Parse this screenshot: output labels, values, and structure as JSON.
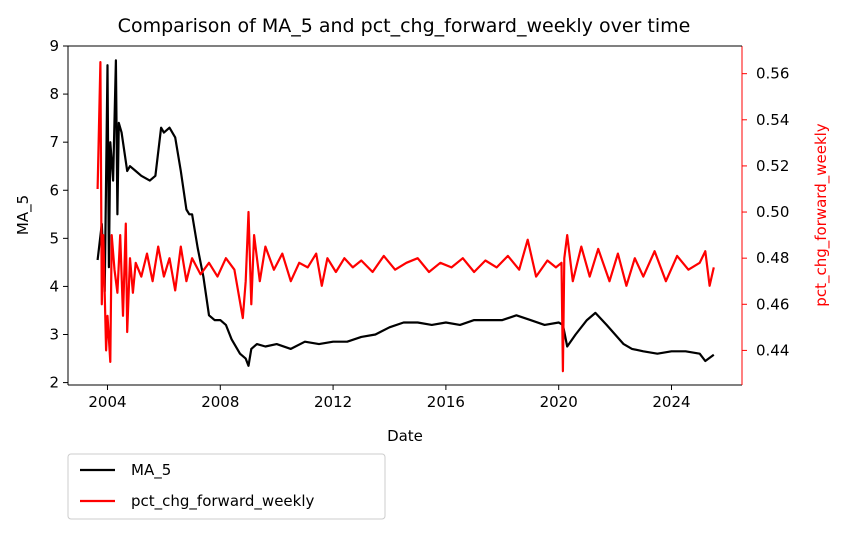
{
  "chart_data": {
    "type": "line",
    "title": "Comparison of MA_5 and pct_chg_forward_weekly over time",
    "xlabel": "Date",
    "ylabel_left": "MA_5",
    "ylabel_right": "pct_chg_forward_weekly",
    "xlim": [
      2002.6,
      2026.5
    ],
    "ylim_left": [
      1.95,
      9.0
    ],
    "ylim_right": [
      0.425,
      0.572
    ],
    "x_ticks": [
      2004,
      2008,
      2012,
      2016,
      2020,
      2024
    ],
    "x_tick_labels": [
      "2004",
      "2008",
      "2012",
      "2016",
      "2020",
      "2024"
    ],
    "y_left_ticks": [
      2,
      3,
      4,
      5,
      6,
      7,
      8,
      9
    ],
    "y_left_tick_labels": [
      "2",
      "3",
      "4",
      "5",
      "6",
      "7",
      "8",
      "9"
    ],
    "y_right_ticks": [
      0.44,
      0.46,
      0.48,
      0.5,
      0.52,
      0.54,
      0.56
    ],
    "y_right_tick_labels": [
      "0.44",
      "0.46",
      "0.48",
      "0.50",
      "0.52",
      "0.54",
      "0.56"
    ],
    "grid": false,
    "legend_placement": "below-left",
    "right_axis_color": "#ff0000",
    "series": [
      {
        "name": "MA_5",
        "axis": "left",
        "color": "#000000",
        "x": [
          2003.65,
          2003.8,
          2003.9,
          2004.0,
          2004.05,
          2004.1,
          2004.2,
          2004.3,
          2004.35,
          2004.4,
          2004.5,
          2004.6,
          2004.7,
          2004.8,
          2005.0,
          2005.2,
          2005.5,
          2005.7,
          2005.9,
          2006.0,
          2006.2,
          2006.4,
          2006.6,
          2006.8,
          2006.9,
          2007.0,
          2007.2,
          2007.4,
          2007.6,
          2007.8,
          2008.0,
          2008.2,
          2008.4,
          2008.7,
          2008.9,
          2009.0,
          2009.1,
          2009.3,
          2009.6,
          2010.0,
          2010.5,
          2011.0,
          2011.5,
          2012.0,
          2012.5,
          2013.0,
          2013.5,
          2014.0,
          2014.5,
          2015.0,
          2015.5,
          2016.0,
          2016.5,
          2017.0,
          2017.5,
          2018.0,
          2018.5,
          2019.0,
          2019.5,
          2020.0,
          2020.15,
          2020.3,
          2020.6,
          2021.0,
          2021.3,
          2021.7,
          2022.0,
          2022.3,
          2022.6,
          2023.0,
          2023.5,
          2024.0,
          2024.5,
          2025.0,
          2025.2,
          2025.5
        ],
        "values": [
          4.55,
          5.3,
          3.9,
          8.6,
          4.4,
          7.0,
          6.2,
          8.7,
          5.5,
          7.4,
          7.2,
          6.8,
          6.4,
          6.5,
          6.4,
          6.3,
          6.2,
          6.3,
          7.3,
          7.2,
          7.3,
          7.1,
          6.4,
          5.6,
          5.5,
          5.5,
          4.8,
          4.2,
          3.4,
          3.3,
          3.3,
          3.2,
          2.9,
          2.6,
          2.5,
          2.35,
          2.7,
          2.8,
          2.75,
          2.8,
          2.7,
          2.85,
          2.8,
          2.85,
          2.85,
          2.95,
          3.0,
          3.15,
          3.25,
          3.25,
          3.2,
          3.25,
          3.2,
          3.3,
          3.3,
          3.3,
          3.4,
          3.3,
          3.2,
          3.25,
          3.2,
          2.75,
          3.0,
          3.3,
          3.45,
          3.2,
          3.0,
          2.8,
          2.7,
          2.65,
          2.6,
          2.65,
          2.65,
          2.6,
          2.45,
          2.58
        ]
      },
      {
        "name": "pct_chg_forward_weekly",
        "axis": "right",
        "color": "#ff0000",
        "x": [
          2003.65,
          2003.75,
          2003.8,
          2003.85,
          2003.95,
          2004.0,
          2004.1,
          2004.15,
          2004.25,
          2004.35,
          2004.45,
          2004.55,
          2004.65,
          2004.7,
          2004.8,
          2004.9,
          2005.0,
          2005.2,
          2005.4,
          2005.6,
          2005.8,
          2006.0,
          2006.2,
          2006.4,
          2006.6,
          2006.8,
          2007.0,
          2007.3,
          2007.6,
          2007.9,
          2008.2,
          2008.5,
          2008.8,
          2008.9,
          2009.0,
          2009.1,
          2009.2,
          2009.4,
          2009.6,
          2009.9,
          2010.2,
          2010.5,
          2010.8,
          2011.1,
          2011.4,
          2011.6,
          2011.8,
          2012.1,
          2012.4,
          2012.7,
          2013.0,
          2013.4,
          2013.8,
          2014.2,
          2014.6,
          2015.0,
          2015.4,
          2015.8,
          2016.2,
          2016.6,
          2017.0,
          2017.4,
          2017.8,
          2018.2,
          2018.6,
          2018.9,
          2019.2,
          2019.6,
          2019.9,
          2020.1,
          2020.15,
          2020.2,
          2020.3,
          2020.5,
          2020.8,
          2021.1,
          2021.4,
          2021.8,
          2022.1,
          2022.4,
          2022.7,
          2023.0,
          2023.4,
          2023.8,
          2024.2,
          2024.6,
          2025.0,
          2025.2,
          2025.35,
          2025.5
        ],
        "values": [
          0.51,
          0.565,
          0.46,
          0.49,
          0.44,
          0.455,
          0.435,
          0.49,
          0.475,
          0.465,
          0.49,
          0.455,
          0.495,
          0.448,
          0.48,
          0.465,
          0.478,
          0.472,
          0.482,
          0.47,
          0.485,
          0.472,
          0.48,
          0.466,
          0.485,
          0.47,
          0.48,
          0.473,
          0.478,
          0.472,
          0.48,
          0.475,
          0.454,
          0.47,
          0.5,
          0.46,
          0.49,
          0.47,
          0.485,
          0.475,
          0.482,
          0.47,
          0.478,
          0.476,
          0.482,
          0.468,
          0.48,
          0.474,
          0.48,
          0.476,
          0.479,
          0.474,
          0.481,
          0.475,
          0.478,
          0.48,
          0.474,
          0.478,
          0.476,
          0.48,
          0.474,
          0.479,
          0.476,
          0.481,
          0.475,
          0.488,
          0.472,
          0.479,
          0.476,
          0.478,
          0.431,
          0.48,
          0.49,
          0.47,
          0.485,
          0.472,
          0.484,
          0.47,
          0.482,
          0.468,
          0.48,
          0.472,
          0.483,
          0.47,
          0.481,
          0.475,
          0.478,
          0.483,
          0.468,
          0.476
        ]
      }
    ]
  }
}
